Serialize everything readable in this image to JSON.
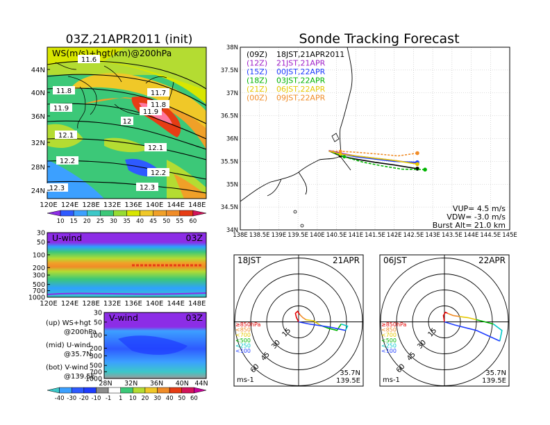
{
  "left_title": "03Z,21APR2011 (init)",
  "main_title": "Sonde Tracking Forecast",
  "map_panel": {
    "label": "WS(m/s)+hgt(km)@200hPa",
    "lon_ticks": [
      "120E",
      "124E",
      "128E",
      "132E",
      "136E",
      "140E",
      "144E",
      "148E"
    ],
    "lat_ticks": [
      "44N",
      "40N",
      "36N",
      "32N",
      "28N",
      "24N"
    ],
    "contour_labels": [
      "11.6",
      "11.7",
      "11.8",
      "11.8",
      "11.9",
      "11.9",
      "12",
      "12.1",
      "12.1",
      "12.2",
      "12.2",
      "12.3",
      "12.3"
    ]
  },
  "ws_colorbar": [
    "10",
    "15",
    "20",
    "25",
    "30",
    "35",
    "40",
    "45",
    "50",
    "55",
    "60"
  ],
  "u_panel": {
    "label": "U-wind",
    "time": "03Z",
    "p_ticks": [
      "30",
      "50",
      "100",
      "200",
      "300",
      "500",
      "700",
      "1000"
    ],
    "lon_ticks": [
      "120E",
      "124E",
      "128E",
      "132E",
      "136E",
      "140E",
      "144E",
      "148E"
    ]
  },
  "v_panel": {
    "label": "V-wind",
    "time": "03Z",
    "p_ticks": [
      "30",
      "50",
      "100",
      "200",
      "300",
      "500",
      "700",
      "1000"
    ],
    "lat_ticks": [
      "28N",
      "32N",
      "36N",
      "40N",
      "44N"
    ]
  },
  "uv_colorbar": [
    "-40",
    "-30",
    "-20",
    "-10",
    "-1",
    "1",
    "10",
    "20",
    "30",
    "40",
    "50",
    "60"
  ],
  "legend_notes": [
    {
      "a": "(up) WS+hgt",
      "b": "@200hPa"
    },
    {
      "a": "(mid) U-wind",
      "b": "@35.7N"
    },
    {
      "a": "(bot) V-wind",
      "b": "@139.5E"
    }
  ],
  "track_map": {
    "lat_ticks": [
      "38N",
      "37.5N",
      "37N",
      "36.5N",
      "36N",
      "35.5N",
      "35N",
      "34.5N",
      "34N"
    ],
    "lon_ticks": [
      "138E",
      "138.5E",
      "139E",
      "139.5E",
      "140E",
      "140.5E",
      "141E",
      "141.5E",
      "142E",
      "142.5E",
      "143E",
      "143.5E",
      "144E",
      "144.5E",
      "145E"
    ],
    "legend": [
      {
        "z": "(09Z)",
        "t": "18JST,21APR2011",
        "color": "#000000"
      },
      {
        "z": "(12Z)",
        "t": "21JST,21APR",
        "color": "#a020c8"
      },
      {
        "z": "(15Z)",
        "t": "00JST,22APR",
        "color": "#1e3cff"
      },
      {
        "z": "(18Z)",
        "t": "03JST,22APR",
        "color": "#00b400"
      },
      {
        "z": "(21Z)",
        "t": "06JST,22APR",
        "color": "#e6c800"
      },
      {
        "z": "(00Z)",
        "t": "09JST,22APR",
        "color": "#f08c28"
      }
    ],
    "vup": "VUP= 4.5 m/s",
    "vdw": "VDW= -3.0 m/s",
    "burst": "Burst Alt= 21.0 km"
  },
  "hodo_left": {
    "time": "18JST",
    "date": "21APR",
    "ring_labels": [
      "15",
      "30",
      "45",
      "60"
    ],
    "unit": "ms-1",
    "lat": "35.7N",
    "lon": "139.5E",
    "levels": [
      {
        "t": "≥850hPa",
        "c": "#e60000"
      },
      {
        "t": "<850",
        "c": "#f08c28"
      },
      {
        "t": "<700",
        "c": "#e6c800"
      },
      {
        "t": "<500",
        "c": "#00b400"
      },
      {
        "t": "<250",
        "c": "#00c8c8"
      },
      {
        "t": "<100",
        "c": "#1e3cff"
      }
    ]
  },
  "hodo_right": {
    "time": "06JST",
    "date": "22APR",
    "ring_labels": [
      "15",
      "30",
      "45",
      "60"
    ],
    "unit": "ms-1",
    "lat": "35.7N",
    "lon": "139.5E",
    "levels": [
      {
        "t": "≥850hPa",
        "c": "#e60000"
      },
      {
        "t": "<850",
        "c": "#f08c28"
      },
      {
        "t": "<700",
        "c": "#e6c800"
      },
      {
        "t": "<500",
        "c": "#00b400"
      },
      {
        "t": "<250",
        "c": "#00c8c8"
      },
      {
        "t": "<100",
        "c": "#1e3cff"
      }
    ]
  },
  "chart_data": [
    {
      "type": "line",
      "title": "Sonde Tracking Forecast",
      "xlabel": "",
      "ylabel": "",
      "xlim": [
        138,
        145
      ],
      "ylim": [
        34,
        38
      ],
      "series": [
        {
          "name": "(09Z) 18JST,21APR2011",
          "x": [
            140.3,
            140.6,
            141.0,
            141.5,
            142.0,
            142.6
          ],
          "y": [
            35.73,
            35.62,
            35.55,
            35.48,
            35.42,
            35.34
          ]
        },
        {
          "name": "(12Z) 21JST,21APR",
          "x": [
            140.3,
            140.6,
            141.0,
            141.5,
            142.0,
            142.6
          ],
          "y": [
            35.74,
            35.68,
            35.62,
            35.57,
            35.52,
            35.45
          ]
        },
        {
          "name": "(15Z) 00JST,22APR",
          "x": [
            140.3,
            140.6,
            141.0,
            141.5,
            142.0,
            142.6
          ],
          "y": [
            35.73,
            35.66,
            35.6,
            35.55,
            35.5,
            35.48
          ]
        },
        {
          "name": "(18Z) 03JST,22APR",
          "x": [
            140.3,
            140.7,
            141.2,
            141.7,
            142.2,
            142.8
          ],
          "y": [
            35.73,
            35.6,
            35.48,
            35.4,
            35.33,
            35.32
          ]
        },
        {
          "name": "(21Z) 06JST,22APR",
          "x": [
            140.3,
            140.6,
            141.0,
            141.5,
            142.0,
            142.6
          ],
          "y": [
            35.73,
            35.66,
            35.62,
            35.57,
            35.52,
            35.44
          ]
        },
        {
          "name": "(00Z) 09JST,22APR",
          "x": [
            140.3,
            140.6,
            141.0,
            141.6,
            142.1,
            142.6
          ],
          "y": [
            35.73,
            35.72,
            35.7,
            35.66,
            35.62,
            35.68
          ]
        }
      ]
    },
    {
      "type": "line",
      "title": "18JST 21APR hodograph",
      "series": [
        {
          "name": "≥850hPa",
          "u": [
            0,
            -2,
            -3,
            -1,
            1
          ],
          "v": [
            0,
            4,
            8,
            10,
            7
          ]
        },
        {
          "name": "<850",
          "u": [
            1,
            4,
            7
          ],
          "v": [
            7,
            4,
            2
          ]
        },
        {
          "name": "<700",
          "u": [
            7,
            14,
            20
          ],
          "v": [
            2,
            1,
            -3
          ]
        },
        {
          "name": "<500",
          "u": [
            20,
            28,
            36,
            40
          ],
          "v": [
            -3,
            -6,
            -8,
            -2
          ]
        },
        {
          "name": "<250",
          "u": [
            40,
            46,
            44
          ],
          "v": [
            -2,
            -4,
            -8
          ]
        },
        {
          "name": "<100",
          "u": [
            44,
            30,
            10,
            0
          ],
          "v": [
            -8,
            -5,
            -2,
            0
          ]
        }
      ]
    },
    {
      "type": "line",
      "title": "06JST 22APR hodograph",
      "series": [
        {
          "name": "≥850hPa",
          "u": [
            0,
            -1,
            1,
            3
          ],
          "v": [
            0,
            6,
            9,
            8
          ]
        },
        {
          "name": "<850",
          "u": [
            3,
            8,
            14
          ],
          "v": [
            8,
            6,
            5
          ]
        },
        {
          "name": "<700",
          "u": [
            14,
            22,
            30
          ],
          "v": [
            5,
            4,
            2
          ]
        },
        {
          "name": "<500",
          "u": [
            30,
            38,
            46
          ],
          "v": [
            2,
            0,
            -2
          ]
        },
        {
          "name": "<250",
          "u": [
            46,
            54,
            52
          ],
          "v": [
            -2,
            -8,
            -18
          ]
        },
        {
          "name": "<100",
          "u": [
            52,
            30,
            10,
            0
          ],
          "v": [
            -18,
            -8,
            -3,
            0
          ]
        }
      ]
    }
  ]
}
